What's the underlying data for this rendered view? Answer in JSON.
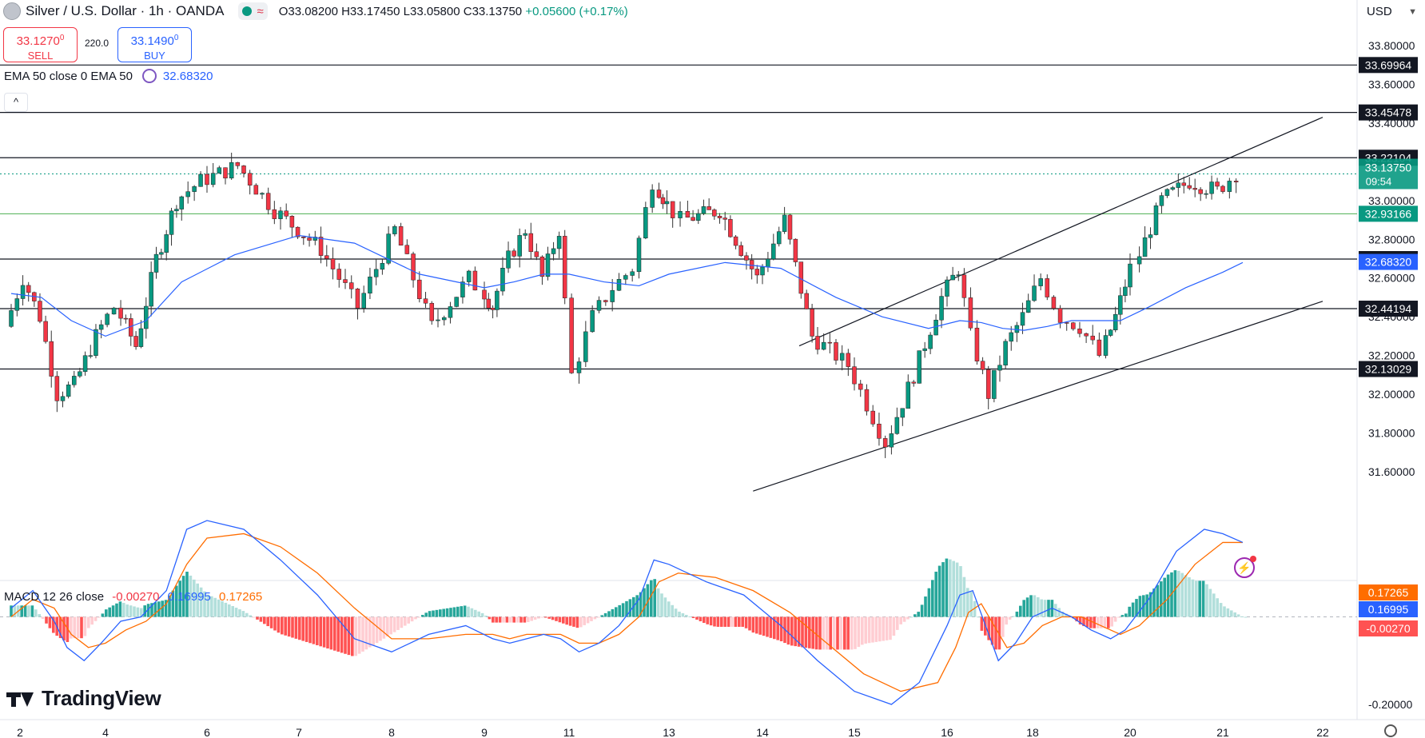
{
  "header": {
    "symbol": "Silver / U.S. Dollar · 1h · OANDA",
    "open": "O33.08200",
    "high": "H33.17450",
    "low": "L33.05800",
    "close": "C33.13750",
    "change": "+0.05600 (+0.17%)"
  },
  "trade": {
    "sell_price": "33.1270",
    "sell_price_sup": "0",
    "sell_label": "SELL",
    "spread": "220.0",
    "buy_price": "33.1490",
    "buy_price_sup": "0",
    "buy_label": "BUY"
  },
  "ema_legend": {
    "label": "EMA 50 close 0 EMA 50",
    "value": "32.68320"
  },
  "macd_legend": {
    "label": "MACD 12 26 close",
    "hist": "-0.00270",
    "macd": "0.16995",
    "signal": "0.17265"
  },
  "currency": "USD",
  "logo": "TradingView",
  "colors": {
    "up": "#089981",
    "down": "#f23645",
    "ema": "#2962ff",
    "macd": "#2962ff",
    "signal": "#ff6d00",
    "support": "#4caf50"
  },
  "chart_data": [
    {
      "type": "candlestick",
      "title": "Silver / U.S. Dollar · 1h · OANDA",
      "price_axis_ticks": [
        "33.80000",
        "33.60000",
        "33.40000",
        "33.20000",
        "33.00000",
        "32.80000",
        "32.60000",
        "32.40000",
        "32.20000",
        "32.00000",
        "31.80000",
        "31.60000"
      ],
      "ylim": [
        31.5,
        33.87
      ],
      "x_ticks": [
        "2",
        "4",
        "6",
        "7",
        "8",
        "9",
        "11",
        "13",
        "14",
        "15",
        "16",
        "18",
        "20",
        "21",
        "22"
      ],
      "current_price": {
        "value": "33.13750",
        "countdown": "09:54"
      },
      "horizontal_levels": [
        "33.69964",
        "33.45478",
        "33.22104",
        "32.69793",
        "32.44194",
        "32.13029"
      ],
      "green_levels": [
        "32.93166"
      ],
      "ema_value_label": "32.68320",
      "trend_channel": {
        "upper": [
          [
            14.4,
            32.25
          ],
          [
            22.5,
            33.43
          ]
        ],
        "lower": [
          [
            13.9,
            31.5
          ],
          [
            22.5,
            32.48
          ]
        ]
      },
      "close_path": [
        [
          1.8,
          32.35
        ],
        [
          2.2,
          32.6
        ],
        [
          2.6,
          32.4
        ],
        [
          3.0,
          32.0
        ],
        [
          3.4,
          32.05
        ],
        [
          3.9,
          32.3
        ],
        [
          4.3,
          32.45
        ],
        [
          4.7,
          32.25
        ],
        [
          5.1,
          32.7
        ],
        [
          5.5,
          33.0
        ],
        [
          6.0,
          33.1
        ],
        [
          6.4,
          33.18
        ],
        [
          6.8,
          32.95
        ],
        [
          7.3,
          32.75
        ],
        [
          7.7,
          32.45
        ],
        [
          8.1,
          32.85
        ],
        [
          8.5,
          32.35
        ],
        [
          8.9,
          32.6
        ],
        [
          9.3,
          32.45
        ],
        [
          9.7,
          32.7
        ],
        [
          10.1,
          32.85
        ],
        [
          10.5,
          32.6
        ],
        [
          10.9,
          32.85
        ],
        [
          11.2,
          32.1
        ],
        [
          11.6,
          32.4
        ],
        [
          12.0,
          32.55
        ],
        [
          12.4,
          32.65
        ],
        [
          12.8,
          33.1
        ],
        [
          13.2,
          32.9
        ],
        [
          13.6,
          32.95
        ],
        [
          14.0,
          32.6
        ],
        [
          14.3,
          32.9
        ],
        [
          14.6,
          32.3
        ],
        [
          15.0,
          32.15
        ],
        [
          15.4,
          31.75
        ],
        [
          15.7,
          32.1
        ],
        [
          16.0,
          32.5
        ],
        [
          16.4,
          32.65
        ],
        [
          16.7,
          32.3
        ],
        [
          17.1,
          32.0
        ],
        [
          17.5,
          32.25
        ],
        [
          17.9,
          32.4
        ],
        [
          18.3,
          32.6
        ],
        [
          18.7,
          32.4
        ],
        [
          19.1,
          32.35
        ],
        [
          19.5,
          32.2
        ],
        [
          19.8,
          32.4
        ],
        [
          20.1,
          32.65
        ],
        [
          20.4,
          33.0
        ],
        [
          20.7,
          33.1
        ],
        [
          21.0,
          33.05
        ],
        [
          21.2,
          33.14
        ]
      ],
      "ema_path": [
        [
          1.8,
          32.52
        ],
        [
          2.5,
          32.5
        ],
        [
          3.2,
          32.38
        ],
        [
          4.0,
          32.3
        ],
        [
          4.8,
          32.38
        ],
        [
          5.5,
          32.58
        ],
        [
          6.3,
          32.72
        ],
        [
          7.0,
          32.82
        ],
        [
          7.6,
          32.78
        ],
        [
          8.3,
          32.62
        ],
        [
          9.0,
          32.55
        ],
        [
          9.7,
          32.58
        ],
        [
          10.4,
          32.62
        ],
        [
          11.0,
          32.62
        ],
        [
          11.7,
          32.58
        ],
        [
          12.4,
          32.56
        ],
        [
          13.0,
          32.62
        ],
        [
          13.6,
          32.68
        ],
        [
          14.2,
          32.65
        ],
        [
          14.8,
          32.5
        ],
        [
          15.3,
          32.4
        ],
        [
          15.8,
          32.34
        ],
        [
          16.3,
          32.38
        ],
        [
          16.8,
          32.37
        ],
        [
          17.3,
          32.34
        ],
        [
          17.8,
          32.33
        ],
        [
          18.3,
          32.35
        ],
        [
          18.8,
          32.38
        ],
        [
          19.3,
          32.38
        ],
        [
          19.8,
          32.38
        ],
        [
          20.2,
          32.45
        ],
        [
          20.6,
          32.55
        ],
        [
          21.0,
          32.63
        ],
        [
          21.2,
          32.68
        ]
      ]
    },
    {
      "type": "line",
      "title": "MACD 12 26 close",
      "axis_ticks": [
        "-0.20000"
      ],
      "ylim": [
        -0.24,
        0.28
      ],
      "value_labels": {
        "signal": "0.17265",
        "macd": "0.16995",
        "hist": "-0.00270"
      },
      "series": [
        {
          "name": "MACD",
          "points": [
            [
              1.8,
              0.02
            ],
            [
              2.3,
              0.06
            ],
            [
              2.8,
              -0.01
            ],
            [
              3.1,
              -0.07
            ],
            [
              3.5,
              -0.1
            ],
            [
              3.9,
              -0.06
            ],
            [
              4.3,
              -0.01
            ],
            [
              4.7,
              0.0
            ],
            [
              5.2,
              0.06
            ],
            [
              5.6,
              0.2
            ],
            [
              6.0,
              0.22
            ],
            [
              6.4,
              0.2
            ],
            [
              6.8,
              0.13
            ],
            [
              7.2,
              0.05
            ],
            [
              7.6,
              -0.05
            ],
            [
              8.0,
              -0.08
            ],
            [
              8.4,
              -0.04
            ],
            [
              8.8,
              -0.02
            ],
            [
              9.2,
              -0.05
            ],
            [
              9.6,
              -0.06
            ],
            [
              10.0,
              -0.05
            ],
            [
              10.4,
              -0.04
            ],
            [
              10.8,
              -0.05
            ],
            [
              11.2,
              -0.08
            ],
            [
              11.6,
              -0.06
            ],
            [
              12.0,
              -0.02
            ],
            [
              12.4,
              0.04
            ],
            [
              12.7,
              0.13
            ],
            [
              13.0,
              0.12
            ],
            [
              13.4,
              0.08
            ],
            [
              13.8,
              0.05
            ],
            [
              14.2,
              -0.02
            ],
            [
              14.6,
              -0.1
            ],
            [
              15.0,
              -0.17
            ],
            [
              15.4,
              -0.2
            ],
            [
              15.7,
              -0.15
            ],
            [
              16.0,
              -0.02
            ],
            [
              16.3,
              0.05
            ],
            [
              16.6,
              0.06
            ],
            [
              16.9,
              -0.02
            ],
            [
              17.2,
              -0.1
            ],
            [
              17.6,
              -0.06
            ],
            [
              18.0,
              0.0
            ],
            [
              18.4,
              0.02
            ],
            [
              18.8,
              0.0
            ],
            [
              19.2,
              -0.03
            ],
            [
              19.6,
              -0.05
            ],
            [
              19.9,
              -0.03
            ],
            [
              20.2,
              0.04
            ],
            [
              20.5,
              0.15
            ],
            [
              20.8,
              0.2
            ],
            [
              21.0,
              0.19
            ],
            [
              21.2,
              0.17
            ]
          ]
        },
        {
          "name": "Signal",
          "points": [
            [
              1.8,
              0.0
            ],
            [
              2.3,
              0.04
            ],
            [
              2.8,
              0.02
            ],
            [
              3.2,
              -0.04
            ],
            [
              3.6,
              -0.07
            ],
            [
              4.0,
              -0.06
            ],
            [
              4.4,
              -0.03
            ],
            [
              4.8,
              -0.01
            ],
            [
              5.2,
              0.03
            ],
            [
              5.6,
              0.12
            ],
            [
              6.0,
              0.18
            ],
            [
              6.4,
              0.19
            ],
            [
              6.8,
              0.16
            ],
            [
              7.2,
              0.1
            ],
            [
              7.6,
              0.02
            ],
            [
              8.0,
              -0.05
            ],
            [
              8.4,
              -0.05
            ],
            [
              8.8,
              -0.04
            ],
            [
              9.2,
              -0.04
            ],
            [
              9.6,
              -0.05
            ],
            [
              10.0,
              -0.04
            ],
            [
              10.4,
              -0.04
            ],
            [
              10.8,
              -0.04
            ],
            [
              11.2,
              -0.06
            ],
            [
              11.6,
              -0.06
            ],
            [
              12.0,
              -0.04
            ],
            [
              12.4,
              0.0
            ],
            [
              12.8,
              0.08
            ],
            [
              13.1,
              0.1
            ],
            [
              13.5,
              0.09
            ],
            [
              13.9,
              0.06
            ],
            [
              14.3,
              0.01
            ],
            [
              14.7,
              -0.06
            ],
            [
              15.1,
              -0.13
            ],
            [
              15.5,
              -0.17
            ],
            [
              15.9,
              -0.15
            ],
            [
              16.2,
              -0.07
            ],
            [
              16.5,
              0.01
            ],
            [
              16.8,
              0.03
            ],
            [
              17.1,
              -0.02
            ],
            [
              17.4,
              -0.07
            ],
            [
              17.8,
              -0.06
            ],
            [
              18.2,
              -0.02
            ],
            [
              18.6,
              0.0
            ],
            [
              19.0,
              0.0
            ],
            [
              19.4,
              -0.02
            ],
            [
              19.8,
              -0.04
            ],
            [
              20.1,
              -0.02
            ],
            [
              20.4,
              0.04
            ],
            [
              20.7,
              0.12
            ],
            [
              21.0,
              0.17
            ],
            [
              21.2,
              0.17
            ]
          ]
        }
      ]
    }
  ]
}
